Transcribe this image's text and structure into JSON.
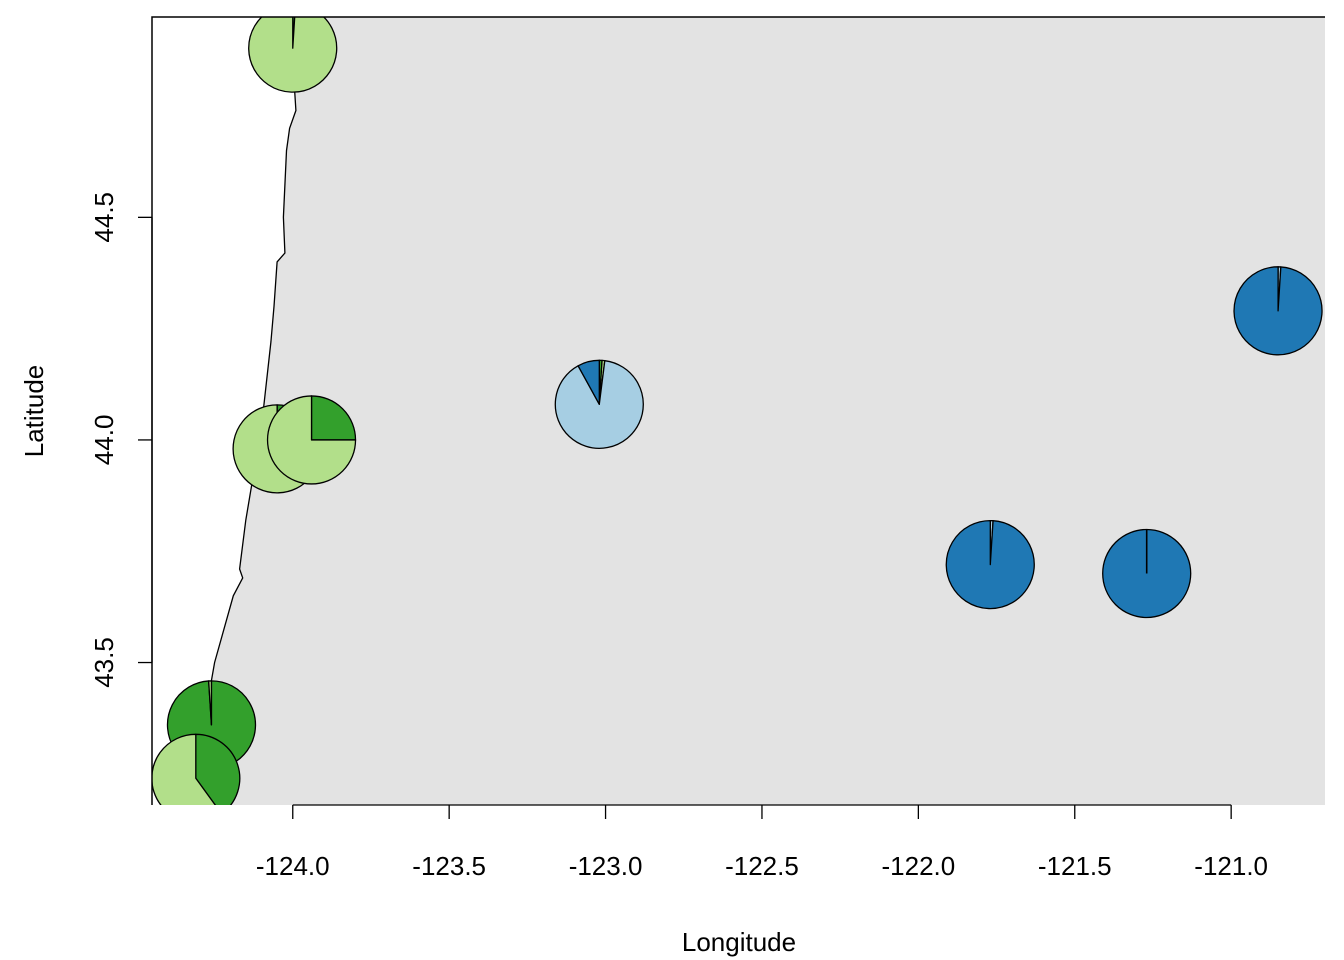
{
  "chart_data": {
    "type": "scatter",
    "subtype": "pie-markers-on-map",
    "xlabel": "Longitude",
    "ylabel": "Latitude",
    "xlim": [
      -124.45,
      -120.7
    ],
    "ylim": [
      43.18,
      44.95
    ],
    "x_ticks": [
      -124.0,
      -123.5,
      -123.0,
      -122.5,
      -122.0,
      -121.5,
      -121.0
    ],
    "x_tick_labels": [
      "-124.0",
      "-123.5",
      "-123.0",
      "-122.5",
      "-122.0",
      "-121.5",
      "-121.0"
    ],
    "y_ticks": [
      43.5,
      44.0,
      44.5
    ],
    "y_tick_labels": [
      "43.5",
      "44.0",
      "44.5"
    ],
    "grid": false,
    "land_color": "#e3e3e3",
    "sea_color": "#ffffff",
    "coastline": [
      [
        -124.45,
        42.9
      ],
      [
        -124.41,
        43.1
      ],
      [
        -124.36,
        43.25
      ],
      [
        -124.28,
        43.38
      ],
      [
        -124.25,
        43.5
      ],
      [
        -124.19,
        43.65
      ],
      [
        -124.16,
        43.69
      ],
      [
        -124.17,
        43.71
      ],
      [
        -124.15,
        43.82
      ],
      [
        -124.1,
        44.03
      ],
      [
        -124.07,
        44.22
      ],
      [
        -124.06,
        44.3
      ],
      [
        -124.05,
        44.4
      ],
      [
        -124.025,
        44.42
      ],
      [
        -124.03,
        44.5
      ],
      [
        -124.02,
        44.65
      ],
      [
        -124.01,
        44.7
      ],
      [
        -123.99,
        44.74
      ],
      [
        -124.0,
        44.85
      ],
      [
        -123.99,
        45.0
      ]
    ],
    "categories": [
      "dark-green",
      "light-green",
      "light-blue",
      "dark-blue"
    ],
    "colors": [
      "#33a02c",
      "#b2df8a",
      "#a6cee3",
      "#1f78b4"
    ],
    "points": [
      {
        "x": -124.0,
        "y": 44.88,
        "values": [
          0.01,
          0.99,
          0.0,
          0.0
        ]
      },
      {
        "x": -124.05,
        "y": 43.98,
        "values": [
          0.14,
          0.86,
          0.0,
          0.0
        ]
      },
      {
        "x": -123.94,
        "y": 44.0,
        "values": [
          0.25,
          0.75,
          0.0,
          0.0
        ]
      },
      {
        "x": -123.02,
        "y": 44.08,
        "values": [
          0.01,
          0.01,
          0.9,
          0.08
        ]
      },
      {
        "x": -124.26,
        "y": 43.36,
        "values": [
          0.99,
          0.01,
          0.0,
          0.0
        ]
      },
      {
        "x": -124.31,
        "y": 43.24,
        "values": [
          0.4,
          0.6,
          0.0,
          0.0
        ]
      },
      {
        "x": -121.77,
        "y": 43.72,
        "values": [
          0.0,
          0.0,
          0.01,
          0.99
        ]
      },
      {
        "x": -121.27,
        "y": 43.7,
        "values": [
          0.0,
          0.0,
          0.0,
          1.0
        ]
      },
      {
        "x": -120.85,
        "y": 44.29,
        "values": [
          0.0,
          0.0,
          0.01,
          0.99
        ]
      }
    ]
  }
}
